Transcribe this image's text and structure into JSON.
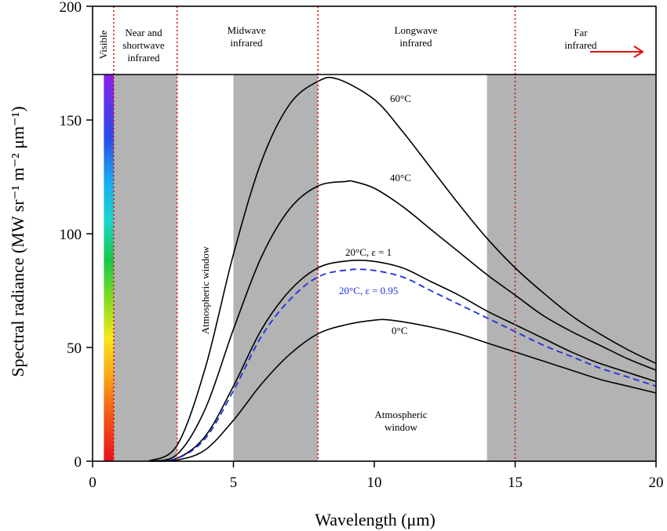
{
  "chart_data": {
    "type": "line",
    "xlabel": "Wavelength (μm)",
    "ylabel": "Spectral radiance (MW sr⁻¹ m⁻² μm⁻¹)",
    "xlim": [
      0,
      20
    ],
    "ylim": [
      0,
      200
    ],
    "xticks": [
      "0",
      "5",
      "10",
      "15",
      "20"
    ],
    "yticks": [
      "0",
      "50",
      "100",
      "150",
      "200"
    ],
    "grid": false,
    "series": [
      {
        "name": "60°C",
        "temperature_c": 60,
        "emissivity": 1,
        "style": "solid",
        "color": "#000000",
        "x": [
          2,
          3,
          4,
          5,
          6,
          7,
          8,
          8.7,
          10,
          11,
          12,
          13,
          14,
          15,
          16,
          17,
          18,
          19,
          20
        ],
        "y": [
          0.1,
          7,
          41,
          91,
          132,
          157,
          167,
          168,
          159,
          145,
          129,
          113,
          98,
          85,
          74,
          64,
          56,
          49,
          43
        ]
      },
      {
        "name": "40°C",
        "temperature_c": 40,
        "emissivity": 1,
        "style": "solid",
        "color": "#000000",
        "x": [
          2,
          3,
          4,
          5,
          6,
          7,
          8,
          9,
          9.25,
          10,
          11,
          12,
          13,
          14,
          15,
          16,
          17,
          18,
          19,
          20
        ],
        "y": [
          0.1,
          3,
          23,
          58,
          90,
          111,
          121,
          123,
          123,
          120,
          112,
          102,
          92,
          82,
          73,
          64,
          57,
          51,
          45,
          40
        ]
      },
      {
        "name": "20°C, ε = 1",
        "temperature_c": 20,
        "emissivity": 1,
        "style": "solid",
        "color": "#000000",
        "x": [
          2,
          3,
          4,
          5,
          6,
          7,
          8,
          9,
          9.9,
          11,
          12,
          13,
          14,
          15,
          16,
          17,
          18,
          19,
          20
        ],
        "y": [
          0.1,
          1.3,
          11,
          33,
          58,
          75,
          85,
          88,
          88,
          85,
          79,
          73,
          66,
          60,
          54,
          48,
          43,
          39,
          35
        ]
      },
      {
        "name": "20°C, ε = 0.95",
        "temperature_c": 20,
        "emissivity": 0.95,
        "style": "dashed",
        "color": "#1f2fe0",
        "x": [
          2,
          3,
          4,
          5,
          6,
          7,
          8,
          9,
          9.9,
          11,
          12,
          13,
          14,
          15,
          16,
          17,
          18,
          19,
          20
        ],
        "y": [
          0.1,
          1.2,
          10,
          31,
          55,
          71,
          81,
          84,
          84,
          81,
          75,
          69,
          63,
          57,
          51,
          46,
          41,
          37,
          33
        ]
      },
      {
        "name": "0°C",
        "temperature_c": 0,
        "emissivity": 1,
        "style": "solid",
        "color": "#000000",
        "x": [
          2,
          3,
          4,
          5,
          6,
          7,
          8,
          9,
          10,
          10.6,
          12,
          13,
          14,
          15,
          16,
          17,
          18,
          19,
          20
        ],
        "y": [
          0.05,
          0.5,
          5,
          18,
          34,
          47,
          56,
          60,
          62,
          62,
          59,
          56,
          52,
          48,
          44,
          40,
          36,
          33,
          30
        ]
      }
    ],
    "bands": [
      {
        "label": "Visible",
        "from": 0.4,
        "to": 0.75
      },
      {
        "label": "Near and shortwave infrared",
        "from": 0.75,
        "to": 3
      },
      {
        "label": "Midwave infrared",
        "from": 3,
        "to": 8
      },
      {
        "label": "Longwave infrared",
        "from": 8,
        "to": 15
      },
      {
        "label": "Far infrared",
        "from": 15,
        "to": 20
      }
    ],
    "band_dividers_x": [
      0.75,
      3,
      8,
      15
    ],
    "band_header_bottom_y": 170,
    "shaded_regions": [
      {
        "from": 0.75,
        "to": 3,
        "color": "#b3b3b3"
      },
      {
        "from": 5,
        "to": 8,
        "color": "#b3b3b3"
      },
      {
        "from": 14,
        "to": 20,
        "color": "#b3b3b3"
      }
    ],
    "window_annotations": [
      "Atmospheric window",
      "Atmospheric window"
    ],
    "colors": {
      "divider": "#e01010",
      "arrow": "#e01010",
      "shade": "#b3b3b3",
      "dashed_curve": "#1f2fe0"
    }
  }
}
